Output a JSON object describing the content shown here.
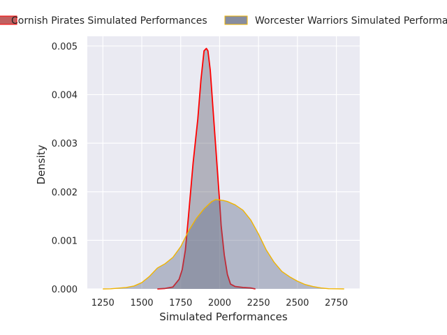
{
  "chart_data": {
    "type": "area",
    "title": "",
    "xlabel": "Simulated Performances",
    "ylabel": "Density",
    "xlim": [
      1150,
      2900
    ],
    "ylim": [
      0,
      0.0052
    ],
    "xticks": [
      1250,
      1500,
      1750,
      2000,
      2250,
      2500,
      2750
    ],
    "xtick_labels": [
      "1250",
      "1500",
      "1750",
      "2000",
      "2250",
      "2500",
      "2750"
    ],
    "yticks": [
      0,
      0.001,
      0.002,
      0.003,
      0.004,
      0.005
    ],
    "ytick_labels": [
      "0.000",
      "0.001",
      "0.002",
      "0.003",
      "0.004",
      "0.005"
    ],
    "grid": true,
    "legend_placement": "top (outside plot)",
    "background": "#eaeaf2",
    "series": [
      {
        "name": "Cornish Pirates Simulated Performances",
        "fill_color": "#5f5f6e",
        "fill_opacity": 0.4,
        "line_color": "#ff0000",
        "legend_swatch_color": "#c06060",
        "x": [
          1600,
          1650,
          1700,
          1740,
          1760,
          1780,
          1800,
          1830,
          1860,
          1880,
          1900,
          1915,
          1925,
          1940,
          1960,
          1980,
          2000,
          2010,
          2030,
          2050,
          2070,
          2100,
          2150,
          2200,
          2230
        ],
        "y": [
          0,
          1e-05,
          4e-05,
          0.0002,
          0.0004,
          0.0008,
          0.0015,
          0.0026,
          0.0035,
          0.0043,
          0.0049,
          0.00495,
          0.0049,
          0.0045,
          0.0036,
          0.0027,
          0.0018,
          0.0013,
          0.0007,
          0.0003,
          0.0001,
          5e-05,
          3e-05,
          2e-05,
          0
        ]
      },
      {
        "name": "Worcester Warriors Simulated Performances",
        "fill_color": "#5f6b8a",
        "fill_opacity": 0.4,
        "line_color": "#f0b400",
        "legend_swatch_color": "#878d9f",
        "x": [
          1250,
          1300,
          1400,
          1450,
          1500,
          1550,
          1600,
          1650,
          1700,
          1750,
          1800,
          1850,
          1900,
          1950,
          1975,
          2000,
          2025,
          2050,
          2100,
          2150,
          2200,
          2250,
          2300,
          2350,
          2400,
          2450,
          2500,
          2550,
          2600,
          2650,
          2700,
          2750,
          2800
        ],
        "y": [
          0,
          3e-06,
          3e-05,
          6e-05,
          0.00013,
          0.00026,
          0.00043,
          0.00052,
          0.00065,
          0.00087,
          0.00119,
          0.00145,
          0.00165,
          0.0018,
          0.00184,
          0.00183,
          0.00182,
          0.0018,
          0.00173,
          0.00162,
          0.00142,
          0.00113,
          0.0008,
          0.00055,
          0.00036,
          0.00025,
          0.00016,
          9e-05,
          5e-05,
          2e-05,
          5e-06,
          2e-06,
          0
        ]
      }
    ]
  }
}
